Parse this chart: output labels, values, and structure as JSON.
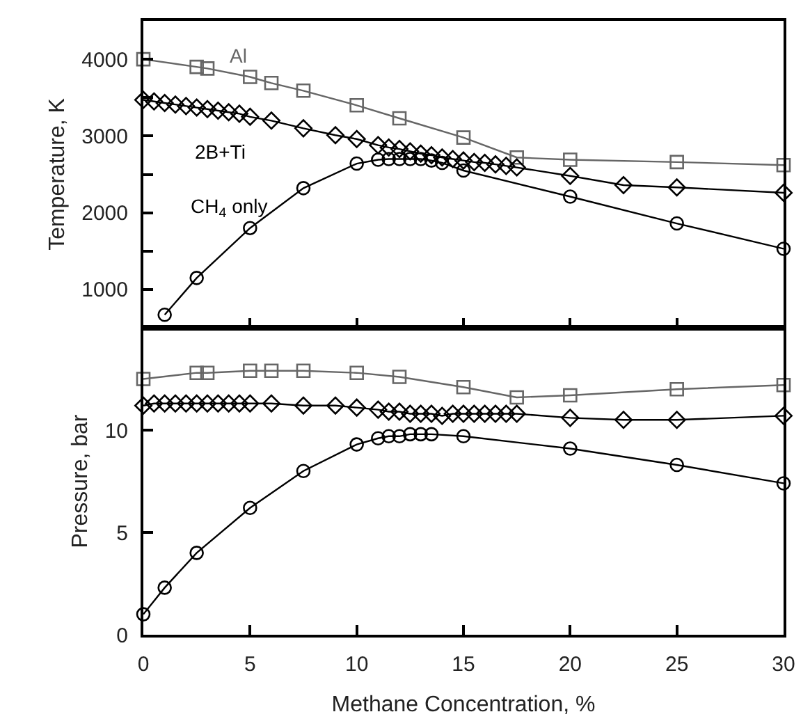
{
  "chart_data": [
    {
      "type": "line",
      "ylabel": "Temperature, K",
      "xlim": [
        0,
        30
      ],
      "xticks": [
        {
          "value": 0,
          "label": null
        },
        {
          "value": 5,
          "label": null
        },
        {
          "value": 10,
          "label": null
        },
        {
          "value": 15,
          "label": null
        },
        {
          "value": 20,
          "label": null
        },
        {
          "value": 25,
          "label": null
        },
        {
          "value": 30,
          "label": null
        }
      ],
      "ylim": [
        500,
        4500
      ],
      "yticks": [
        1000,
        {
          "value": 1500,
          "label": null
        },
        2000,
        {
          "value": 2500,
          "label": null
        },
        3000,
        {
          "value": 3500,
          "label": null
        },
        4000
      ],
      "tick_labels": "y",
      "grid": false,
      "legend": false,
      "series": [
        {
          "name": "Al",
          "color": "#666666",
          "marker": "square",
          "x": [
            0,
            2.5,
            3,
            5,
            6,
            7.5,
            10,
            12,
            15,
            17.5,
            20,
            25,
            30
          ],
          "values": [
            4000,
            3900,
            3880,
            3770,
            3690,
            3590,
            3400,
            3230,
            2980,
            2720,
            2690,
            2660,
            2620
          ]
        },
        {
          "name": "2B+Ti",
          "color": "#000000",
          "marker": "diamond",
          "x": [
            0,
            0.5,
            1,
            1.5,
            2,
            2.5,
            3,
            3.5,
            4,
            4.5,
            5,
            6,
            7.5,
            9,
            10,
            11,
            11.5,
            12,
            12.5,
            13,
            13.5,
            14,
            14.5,
            15,
            15.5,
            16,
            16.5,
            17,
            17.5,
            20,
            22.5,
            25,
            30
          ],
          "values": [
            3470,
            3450,
            3430,
            3410,
            3390,
            3370,
            3350,
            3330,
            3310,
            3290,
            3250,
            3200,
            3100,
            3010,
            2960,
            2880,
            2850,
            2830,
            2800,
            2770,
            2750,
            2720,
            2700,
            2680,
            2660,
            2650,
            2630,
            2610,
            2590,
            2480,
            2360,
            2330,
            2260
          ]
        },
        {
          "name": "CH$_{4}$ only",
          "color": "#000000",
          "marker": "circle",
          "x": [
            1,
            2.5,
            5,
            7.5,
            10,
            11,
            11.5,
            12,
            12.5,
            13,
            13.5,
            14,
            15,
            20,
            25,
            30
          ],
          "values": [
            670,
            1150,
            1800,
            2320,
            2640,
            2690,
            2700,
            2700,
            2700,
            2700,
            2680,
            2650,
            2550,
            2210,
            1860,
            1530
          ]
        }
      ]
    },
    {
      "type": "line",
      "xlabel": "Methane Concentration, %",
      "ylabel": "Pressure, bar",
      "xlim": [
        0,
        30
      ],
      "xticks": [
        0,
        5,
        10,
        15,
        20,
        25,
        30
      ],
      "ylim": [
        0,
        15
      ],
      "yticks": [
        0,
        5,
        10
      ],
      "grid": false,
      "legend": false,
      "series": [
        {
          "color": "#666666",
          "marker": "square",
          "x": [
            0,
            2.5,
            3,
            5,
            6,
            7.5,
            10,
            12,
            15,
            17.5,
            20,
            25,
            30
          ],
          "values": [
            12.5,
            12.8,
            12.8,
            12.9,
            12.9,
            12.9,
            12.8,
            12.6,
            12.1,
            11.6,
            11.7,
            12.0,
            12.2
          ]
        },
        {
          "color": "#000000",
          "marker": "diamond",
          "x": [
            0,
            0.5,
            1,
            1.5,
            2,
            2.5,
            3,
            3.5,
            4,
            4.5,
            5,
            6,
            7.5,
            9,
            10,
            11,
            11.5,
            12,
            12.5,
            13,
            13.5,
            14,
            14.5,
            15,
            15.5,
            16,
            16.5,
            17,
            17.5,
            20,
            22.5,
            25,
            30
          ],
          "values": [
            11.2,
            11.3,
            11.3,
            11.3,
            11.3,
            11.3,
            11.3,
            11.3,
            11.3,
            11.3,
            11.3,
            11.3,
            11.2,
            11.2,
            11.1,
            11.0,
            10.9,
            10.9,
            10.8,
            10.8,
            10.8,
            10.7,
            10.8,
            10.8,
            10.8,
            10.8,
            10.8,
            10.8,
            10.8,
            10.6,
            10.5,
            10.5,
            10.7
          ]
        },
        {
          "color": "#000000",
          "marker": "circle",
          "x": [
            0,
            1,
            2.5,
            5,
            7.5,
            10,
            11,
            11.5,
            12,
            12.5,
            13,
            13.5,
            15,
            20,
            25,
            30
          ],
          "values": [
            1.0,
            2.3,
            4.0,
            6.2,
            8.0,
            9.3,
            9.6,
            9.7,
            9.7,
            9.8,
            9.8,
            9.8,
            9.7,
            9.1,
            8.3,
            7.4
          ]
        }
      ]
    }
  ]
}
